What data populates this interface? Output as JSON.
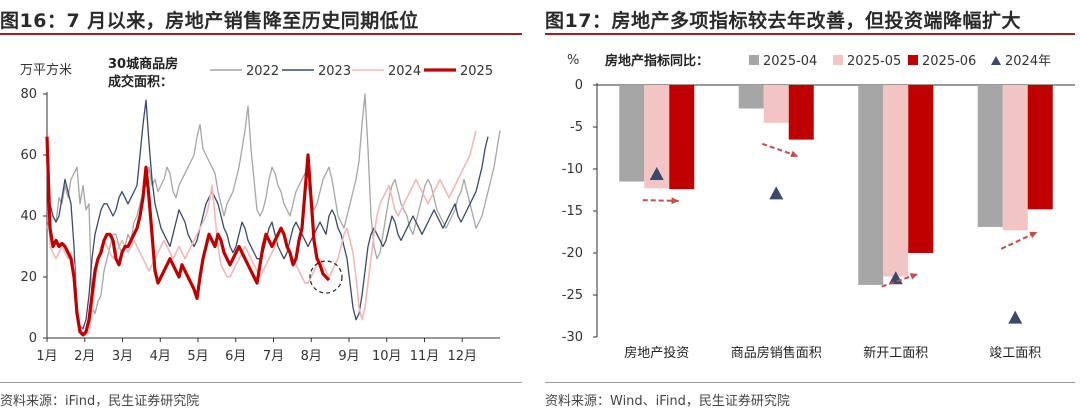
{
  "left": {
    "title": "图16：7 月以来，房地产销售降至历史同期低位",
    "source": "资料来源：iFind，民生证券研究院"
  },
  "right": {
    "title": "图17：房地产多项指标较去年改善，但投资端降幅扩大",
    "source": "资料来源：Wind、iFind，民生证券研究院"
  },
  "chart_data": [
    {
      "type": "line",
      "ylabel": "万平方米",
      "annotation": "30城商品房\n成交面积：",
      "ylim": [
        0,
        80
      ],
      "yticks": [
        0,
        20,
        40,
        60,
        80
      ],
      "xticks": [
        "1月",
        "2月",
        "3月",
        "4月",
        "5月",
        "6月",
        "7月",
        "8月",
        "9月",
        "10月",
        "11月",
        "12月"
      ],
      "legend_position": "top",
      "grid": false,
      "highlight": "2025 early-July low circled",
      "colors": {
        "2022": "#a6a6a6",
        "2023": "#3a4a6a",
        "2024": "#f2b8b8",
        "2025": "#c00000"
      },
      "series": [
        {
          "name": "2022",
          "values": [
            36,
            40,
            40,
            38,
            46,
            44,
            50,
            46,
            52,
            54,
            56,
            44,
            50,
            42,
            44,
            10,
            8,
            12,
            14,
            22,
            26,
            30,
            34,
            34,
            30,
            28,
            30,
            34,
            32,
            38,
            40,
            44,
            48,
            50,
            56,
            50,
            52,
            48,
            50,
            52,
            56,
            54,
            48,
            46,
            50,
            52,
            54,
            56,
            58,
            60,
            66,
            70,
            62,
            60,
            58,
            56,
            54,
            48,
            44,
            40,
            44,
            46,
            48,
            52,
            56,
            62,
            68,
            76,
            62,
            52,
            42,
            40,
            42,
            46,
            52,
            56,
            54,
            50,
            48,
            44,
            42,
            40,
            44,
            48,
            50,
            52,
            54,
            50,
            46,
            42,
            44,
            48,
            52,
            54,
            56,
            52,
            46,
            40,
            38,
            36,
            40,
            44,
            48,
            52,
            58,
            70,
            80,
            62,
            40,
            30,
            26,
            28,
            34,
            40,
            46,
            50,
            52,
            48,
            44,
            42,
            40,
            36,
            34,
            38,
            42,
            46,
            50,
            52,
            50,
            46,
            42,
            40,
            38,
            36,
            38,
            40,
            42,
            46,
            48,
            52,
            48,
            44,
            40,
            36,
            38,
            40,
            44,
            48,
            52,
            56,
            62,
            68
          ]
        },
        {
          "name": "2023",
          "values": [
            64,
            44,
            40,
            38,
            40,
            46,
            52,
            48,
            44,
            30,
            10,
            4,
            3,
            6,
            14,
            26,
            34,
            38,
            42,
            44,
            44,
            42,
            40,
            42,
            46,
            48,
            46,
            44,
            46,
            48,
            50,
            60,
            70,
            78,
            64,
            52,
            44,
            40,
            36,
            34,
            32,
            30,
            34,
            38,
            42,
            40,
            38,
            34,
            32,
            30,
            32,
            36,
            40,
            44,
            46,
            48,
            46,
            44,
            40,
            36,
            34,
            30,
            28,
            30,
            34,
            38,
            36,
            32,
            30,
            28,
            26,
            26,
            28,
            32,
            36,
            38,
            34,
            30,
            28,
            26,
            28,
            32,
            36,
            38,
            36,
            34,
            32,
            30,
            32,
            34,
            36,
            38,
            36,
            34,
            40,
            42,
            40,
            36,
            34,
            30,
            26,
            18,
            10,
            6,
            8,
            14,
            22,
            30,
            34,
            36,
            34,
            32,
            30,
            32,
            36,
            40,
            38,
            34,
            32,
            34,
            36,
            38,
            40,
            38,
            36,
            34,
            36,
            38,
            40,
            42,
            40,
            38,
            36,
            38,
            40,
            42,
            44,
            40,
            38,
            40,
            42,
            44,
            46,
            48,
            52,
            56,
            62,
            66
          ]
        },
        {
          "name": "2024",
          "values": [
            60,
            30,
            28,
            26,
            28,
            30,
            28,
            26,
            28,
            24,
            10,
            4,
            1,
            1,
            2,
            8,
            18,
            26,
            30,
            32,
            30,
            28,
            26,
            28,
            30,
            32,
            30,
            28,
            30,
            32,
            30,
            28,
            26,
            24,
            22,
            24,
            26,
            28,
            30,
            32,
            30,
            28,
            26,
            28,
            30,
            28,
            26,
            28,
            30,
            32,
            34,
            36,
            38,
            40,
            44,
            50,
            40,
            30,
            24,
            22,
            20,
            20,
            22,
            24,
            26,
            28,
            30,
            28,
            26,
            24,
            22,
            20,
            22,
            24,
            26,
            28,
            30,
            34,
            36,
            34,
            30,
            28,
            26,
            24,
            22,
            20,
            18,
            18,
            20,
            22,
            24,
            26,
            24,
            22,
            20,
            22,
            24,
            26,
            30,
            34,
            36,
            32,
            28,
            20,
            10,
            6,
            10,
            18,
            26,
            34,
            40,
            44,
            46,
            48,
            50,
            46,
            42,
            40,
            42,
            44,
            46,
            48,
            50,
            52,
            50,
            48,
            46,
            44,
            46,
            48,
            50,
            52,
            50,
            48,
            46,
            48,
            50,
            52,
            54,
            56,
            58,
            60,
            64,
            68
          ]
        },
        {
          "name": "2025",
          "values": [
            66,
            36,
            30,
            32,
            30,
            31,
            30,
            28,
            26,
            20,
            8,
            2,
            1,
            2,
            6,
            14,
            22,
            26,
            28,
            32,
            34,
            34,
            32,
            26,
            24,
            28,
            30,
            30,
            32,
            34,
            36,
            40,
            46,
            56,
            46,
            34,
            22,
            18,
            20,
            22,
            24,
            26,
            24,
            22,
            20,
            24,
            22,
            20,
            18,
            16,
            13,
            20,
            26,
            30,
            34,
            32,
            30,
            34,
            32,
            28,
            26,
            24,
            26,
            28,
            30,
            28,
            26,
            24,
            22,
            20,
            18,
            24,
            30,
            34,
            32,
            30,
            32,
            34,
            36,
            34,
            30,
            28,
            24,
            26,
            32,
            36,
            48,
            60,
            46,
            32,
            26,
            24,
            21,
            20,
            19
          ]
        }
      ],
      "x_points": 152
    },
    {
      "type": "bar",
      "ylabel": "%",
      "legend_title": "房地产指标同比：",
      "ylim": [
        -30,
        0
      ],
      "yticks": [
        0,
        -5,
        -10,
        -15,
        -20,
        -25,
        -30
      ],
      "categories": [
        "房地产投资",
        "商品房销售面积",
        "新开工面积",
        "竣工面积"
      ],
      "colors": {
        "2025-04": "#a6a6a6",
        "2025-05": "#f2c4c4",
        "2025-06": "#c00000",
        "2024年": "#3a4a6a"
      },
      "series": [
        {
          "name": "2025-04",
          "values": [
            -11.5,
            -2.8,
            -23.8,
            -16.9
          ]
        },
        {
          "name": "2025-05",
          "values": [
            -12.3,
            -4.5,
            -22.8,
            -17.3
          ]
        },
        {
          "name": "2025-06",
          "values": [
            -12.4,
            -6.5,
            -20.0,
            -14.8
          ]
        }
      ],
      "markers": {
        "name": "2024年",
        "values": [
          -10.6,
          -12.9,
          -23.0,
          -27.7
        ]
      },
      "legend_position": "top"
    }
  ]
}
